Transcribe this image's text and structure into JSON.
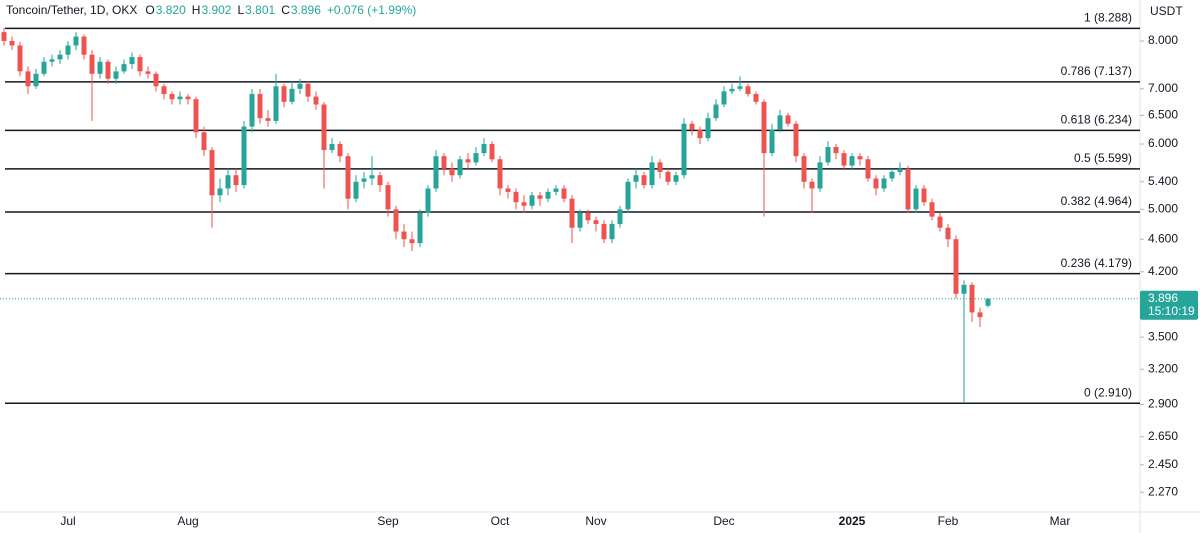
{
  "chart_data": {
    "type": "candlestick",
    "title": "Toncoin/Tether, 1D, OKX",
    "ohlc_readout": [
      {
        "label": "O",
        "value": "3.820"
      },
      {
        "label": "H",
        "value": "3.902"
      },
      {
        "label": "L",
        "value": "3.801"
      },
      {
        "label": "C",
        "value": "3.896"
      }
    ],
    "change": "+0.076 (+1.99%)",
    "currency": "USDT",
    "log_scale": true,
    "up_color": "#26a69a",
    "down_color": "#ef5350",
    "categories": [
      null,
      null,
      null,
      null,
      null,
      null,
      null,
      null,
      "Jul",
      null,
      null,
      null,
      null,
      null,
      null,
      null,
      null,
      null,
      null,
      null,
      null,
      null,
      null,
      "Aug",
      null,
      null,
      null,
      null,
      null,
      null,
      null,
      null,
      null,
      null,
      null,
      null,
      null,
      null,
      null,
      null,
      null,
      null,
      null,
      null,
      null,
      null,
      null,
      null,
      "Sep",
      null,
      null,
      null,
      null,
      null,
      null,
      null,
      null,
      null,
      null,
      null,
      null,
      null,
      "Oct",
      null,
      null,
      null,
      null,
      null,
      null,
      null,
      null,
      null,
      null,
      null,
      "Nov",
      null,
      null,
      null,
      null,
      null,
      null,
      null,
      null,
      null,
      null,
      null,
      null,
      null,
      null,
      null,
      "Dec",
      null,
      null,
      null,
      null,
      null,
      null,
      null,
      null,
      null,
      null,
      null,
      null,
      null,
      null,
      null,
      "2025",
      null,
      null,
      null,
      null,
      null,
      null,
      null,
      null,
      null,
      null,
      null,
      "Feb",
      null,
      null,
      null,
      null,
      null,
      null,
      null,
      null,
      null,
      null,
      null,
      null,
      null,
      "Mar"
    ],
    "open": [
      8.2,
      8.0,
      7.9,
      7.35,
      7.05,
      7.3,
      7.55,
      7.6,
      7.7,
      7.9,
      8.1,
      7.7,
      7.3,
      7.55,
      7.2,
      7.35,
      7.5,
      7.65,
      7.35,
      7.3,
      7.05,
      6.9,
      6.8,
      6.85,
      6.8,
      6.2,
      5.9,
      5.2,
      5.3,
      5.5,
      5.35,
      6.3,
      6.9,
      6.45,
      6.4,
      7.05,
      6.75,
      7.0,
      7.1,
      6.85,
      6.7,
      5.9,
      6.0,
      5.8,
      5.15,
      5.4,
      5.45,
      5.5,
      5.35,
      5.0,
      4.7,
      4.6,
      4.55,
      4.95,
      5.3,
      5.8,
      5.6,
      5.5,
      5.75,
      5.7,
      5.85,
      6.0,
      5.75,
      5.3,
      5.25,
      5.1,
      5.05,
      5.2,
      5.15,
      5.25,
      5.3,
      5.15,
      4.75,
      4.95,
      4.85,
      4.8,
      4.6,
      4.8,
      5.0,
      5.4,
      5.5,
      5.35,
      5.7,
      5.55,
      5.4,
      5.5,
      6.35,
      6.25,
      6.1,
      6.45,
      6.7,
      6.95,
      7.0,
      7.05,
      6.9,
      6.75,
      5.85,
      6.25,
      6.5,
      6.35,
      5.8,
      5.4,
      5.3,
      5.7,
      5.95,
      5.85,
      5.65,
      5.8,
      5.75,
      5.45,
      5.3,
      5.45,
      5.55,
      5.6,
      5.0,
      5.3,
      5.1,
      4.9,
      4.75,
      4.6,
      3.95,
      4.05,
      3.75,
      3.82,
      null,
      null,
      null,
      null,
      null,
      null,
      null,
      null,
      null
    ],
    "high": [
      8.3,
      8.1,
      7.98,
      7.45,
      7.4,
      7.65,
      7.7,
      7.8,
      8.0,
      8.2,
      8.15,
      7.8,
      7.65,
      7.6,
      7.45,
      7.6,
      7.75,
      7.7,
      7.45,
      7.35,
      7.1,
      6.95,
      6.95,
      6.9,
      6.85,
      6.3,
      5.95,
      5.45,
      5.6,
      5.6,
      6.4,
      7.0,
      7.0,
      6.6,
      7.3,
      7.1,
      7.15,
      7.2,
      7.15,
      6.95,
      6.75,
      6.1,
      6.05,
      5.85,
      5.5,
      5.55,
      5.8,
      5.55,
      5.4,
      5.05,
      4.8,
      4.7,
      5.0,
      5.35,
      5.9,
      5.85,
      5.7,
      5.8,
      5.85,
      5.95,
      6.1,
      6.05,
      5.8,
      5.35,
      5.3,
      5.2,
      5.25,
      5.25,
      5.3,
      5.35,
      5.35,
      5.2,
      5.0,
      5.0,
      4.9,
      4.85,
      4.85,
      5.05,
      5.45,
      5.6,
      5.55,
      5.8,
      5.75,
      5.6,
      5.55,
      6.45,
      6.4,
      6.3,
      6.55,
      6.8,
      7.05,
      7.1,
      7.25,
      7.1,
      6.95,
      6.8,
      6.35,
      6.6,
      6.55,
      6.4,
      5.85,
      5.45,
      5.8,
      6.05,
      6.0,
      5.9,
      5.85,
      5.85,
      5.8,
      5.5,
      5.5,
      5.6,
      5.7,
      5.65,
      5.35,
      5.35,
      5.15,
      4.95,
      4.8,
      4.65,
      4.1,
      4.08,
      3.8,
      3.902,
      null,
      null,
      null,
      null,
      null,
      null,
      null,
      null,
      null
    ],
    "low": [
      7.9,
      7.8,
      7.25,
      6.9,
      7.0,
      7.25,
      7.45,
      7.5,
      7.6,
      7.8,
      7.6,
      6.4,
      7.2,
      7.1,
      7.1,
      7.3,
      7.4,
      7.25,
      7.2,
      6.95,
      6.8,
      6.7,
      6.7,
      6.7,
      6.1,
      5.8,
      4.75,
      5.1,
      5.2,
      5.25,
      5.3,
      6.2,
      6.35,
      6.3,
      6.35,
      6.65,
      6.7,
      6.9,
      6.75,
      6.6,
      5.3,
      5.85,
      5.7,
      5.0,
      5.1,
      5.3,
      5.35,
      5.25,
      4.9,
      4.6,
      4.5,
      4.45,
      4.5,
      4.9,
      5.25,
      5.5,
      5.4,
      5.45,
      5.6,
      5.65,
      5.8,
      5.7,
      5.2,
      5.15,
      5.0,
      4.95,
      5.0,
      5.05,
      5.1,
      5.2,
      5.1,
      4.55,
      4.7,
      4.8,
      4.7,
      4.55,
      4.55,
      4.75,
      4.95,
      5.3,
      5.3,
      5.3,
      5.45,
      5.35,
      5.35,
      5.45,
      6.15,
      6.0,
      6.05,
      6.4,
      6.65,
      6.9,
      6.95,
      6.85,
      6.7,
      4.9,
      5.8,
      6.2,
      6.3,
      5.7,
      5.3,
      4.95,
      5.25,
      5.65,
      5.75,
      5.6,
      5.6,
      5.65,
      5.4,
      5.2,
      5.25,
      5.4,
      5.5,
      4.95,
      4.95,
      5.05,
      4.85,
      4.7,
      4.5,
      3.9,
      2.91,
      3.65,
      3.6,
      3.801,
      null,
      null,
      null,
      null,
      null,
      null,
      null,
      null,
      null
    ],
    "close": [
      8.0,
      7.9,
      7.35,
      7.05,
      7.3,
      7.55,
      7.6,
      7.7,
      7.9,
      8.1,
      7.7,
      7.3,
      7.55,
      7.2,
      7.35,
      7.5,
      7.65,
      7.35,
      7.3,
      7.05,
      6.9,
      6.8,
      6.85,
      6.8,
      6.2,
      5.9,
      5.2,
      5.3,
      5.5,
      5.35,
      6.3,
      6.9,
      6.45,
      6.4,
      7.05,
      6.75,
      7.0,
      7.1,
      6.85,
      6.7,
      5.9,
      6.0,
      5.8,
      5.15,
      5.4,
      5.45,
      5.5,
      5.35,
      5.0,
      4.7,
      4.6,
      4.55,
      4.95,
      5.3,
      5.8,
      5.6,
      5.5,
      5.75,
      5.7,
      5.85,
      6.0,
      5.75,
      5.3,
      5.25,
      5.1,
      5.05,
      5.2,
      5.15,
      5.25,
      5.3,
      5.15,
      4.75,
      4.95,
      4.85,
      4.8,
      4.6,
      4.8,
      5.0,
      5.4,
      5.5,
      5.35,
      5.7,
      5.55,
      5.4,
      5.5,
      6.35,
      6.25,
      6.1,
      6.45,
      6.7,
      6.95,
      7.0,
      7.05,
      6.9,
      6.75,
      5.85,
      6.25,
      6.5,
      6.35,
      5.8,
      5.4,
      5.3,
      5.7,
      5.95,
      5.85,
      5.65,
      5.8,
      5.75,
      5.45,
      5.3,
      5.45,
      5.55,
      5.6,
      5.0,
      5.3,
      5.1,
      4.9,
      4.75,
      4.6,
      3.95,
      4.05,
      3.75,
      3.7,
      3.896,
      null,
      null,
      null,
      null,
      null,
      null,
      null,
      null,
      null
    ],
    "ylim": [
      2.16,
      8.97
    ],
    "yticks": [
      {
        "value": 8,
        "label": "8.000"
      },
      {
        "value": 7,
        "label": "7.000"
      },
      {
        "value": 6.5,
        "label": "6.500"
      },
      {
        "value": 6,
        "label": "6.000"
      },
      {
        "value": 5.4,
        "label": "5.400"
      },
      {
        "value": 5,
        "label": "5.000"
      },
      {
        "value": 4.6,
        "label": "4.600"
      },
      {
        "value": 4.2,
        "label": "4.200"
      },
      {
        "value": 3.5,
        "label": "3.500"
      },
      {
        "value": 3.2,
        "label": "3.200"
      },
      {
        "value": 2.9,
        "label": "2.900"
      },
      {
        "value": 2.65,
        "label": "2.650"
      },
      {
        "value": 2.45,
        "label": "2.450"
      },
      {
        "value": 2.27,
        "label": "2.270"
      }
    ],
    "levels": [
      {
        "value": 8.288,
        "label": "1 (8.288)"
      },
      {
        "value": 7.137,
        "label": "0.786 (7.137)"
      },
      {
        "value": 6.234,
        "label": "0.618 (6.234)"
      },
      {
        "value": 5.599,
        "label": "0.5 (5.599)"
      },
      {
        "value": 4.964,
        "label": "0.382 (4.964)"
      },
      {
        "value": 4.179,
        "label": "0.236 (4.179)"
      },
      {
        "value": 2.91,
        "label": "0 (2.910)"
      }
    ],
    "level_color": "#131722",
    "last_price": 3.896,
    "countdown": "15:10:19"
  }
}
